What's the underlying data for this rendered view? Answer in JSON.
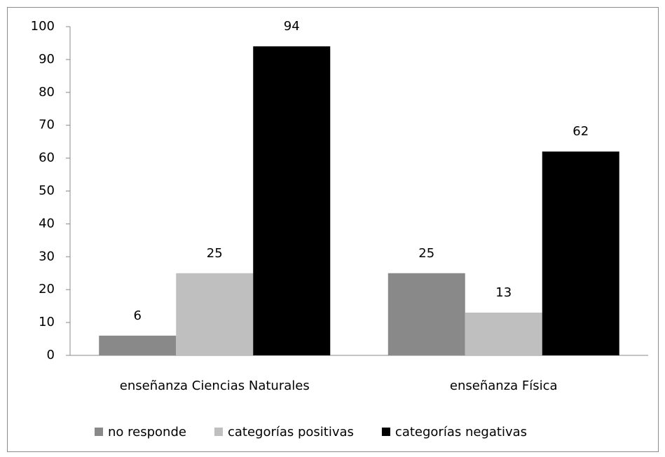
{
  "chart_data": {
    "type": "bar",
    "categories": [
      "enseñanza Ciencias Naturales",
      "enseñanza Física"
    ],
    "series": [
      {
        "name": "no responde",
        "color": "#898989",
        "values": [
          6,
          25
        ]
      },
      {
        "name": "categorías positivas",
        "color": "#bfbfbf",
        "values": [
          25,
          13
        ]
      },
      {
        "name": "categorías negativas",
        "color": "#000000",
        "values": [
          94,
          62
        ]
      }
    ],
    "ylim": [
      0,
      100
    ],
    "yticks": [
      0,
      10,
      20,
      30,
      40,
      50,
      60,
      70,
      80,
      90,
      100
    ],
    "grid": false,
    "legend": "bottom",
    "data_labels": true
  }
}
